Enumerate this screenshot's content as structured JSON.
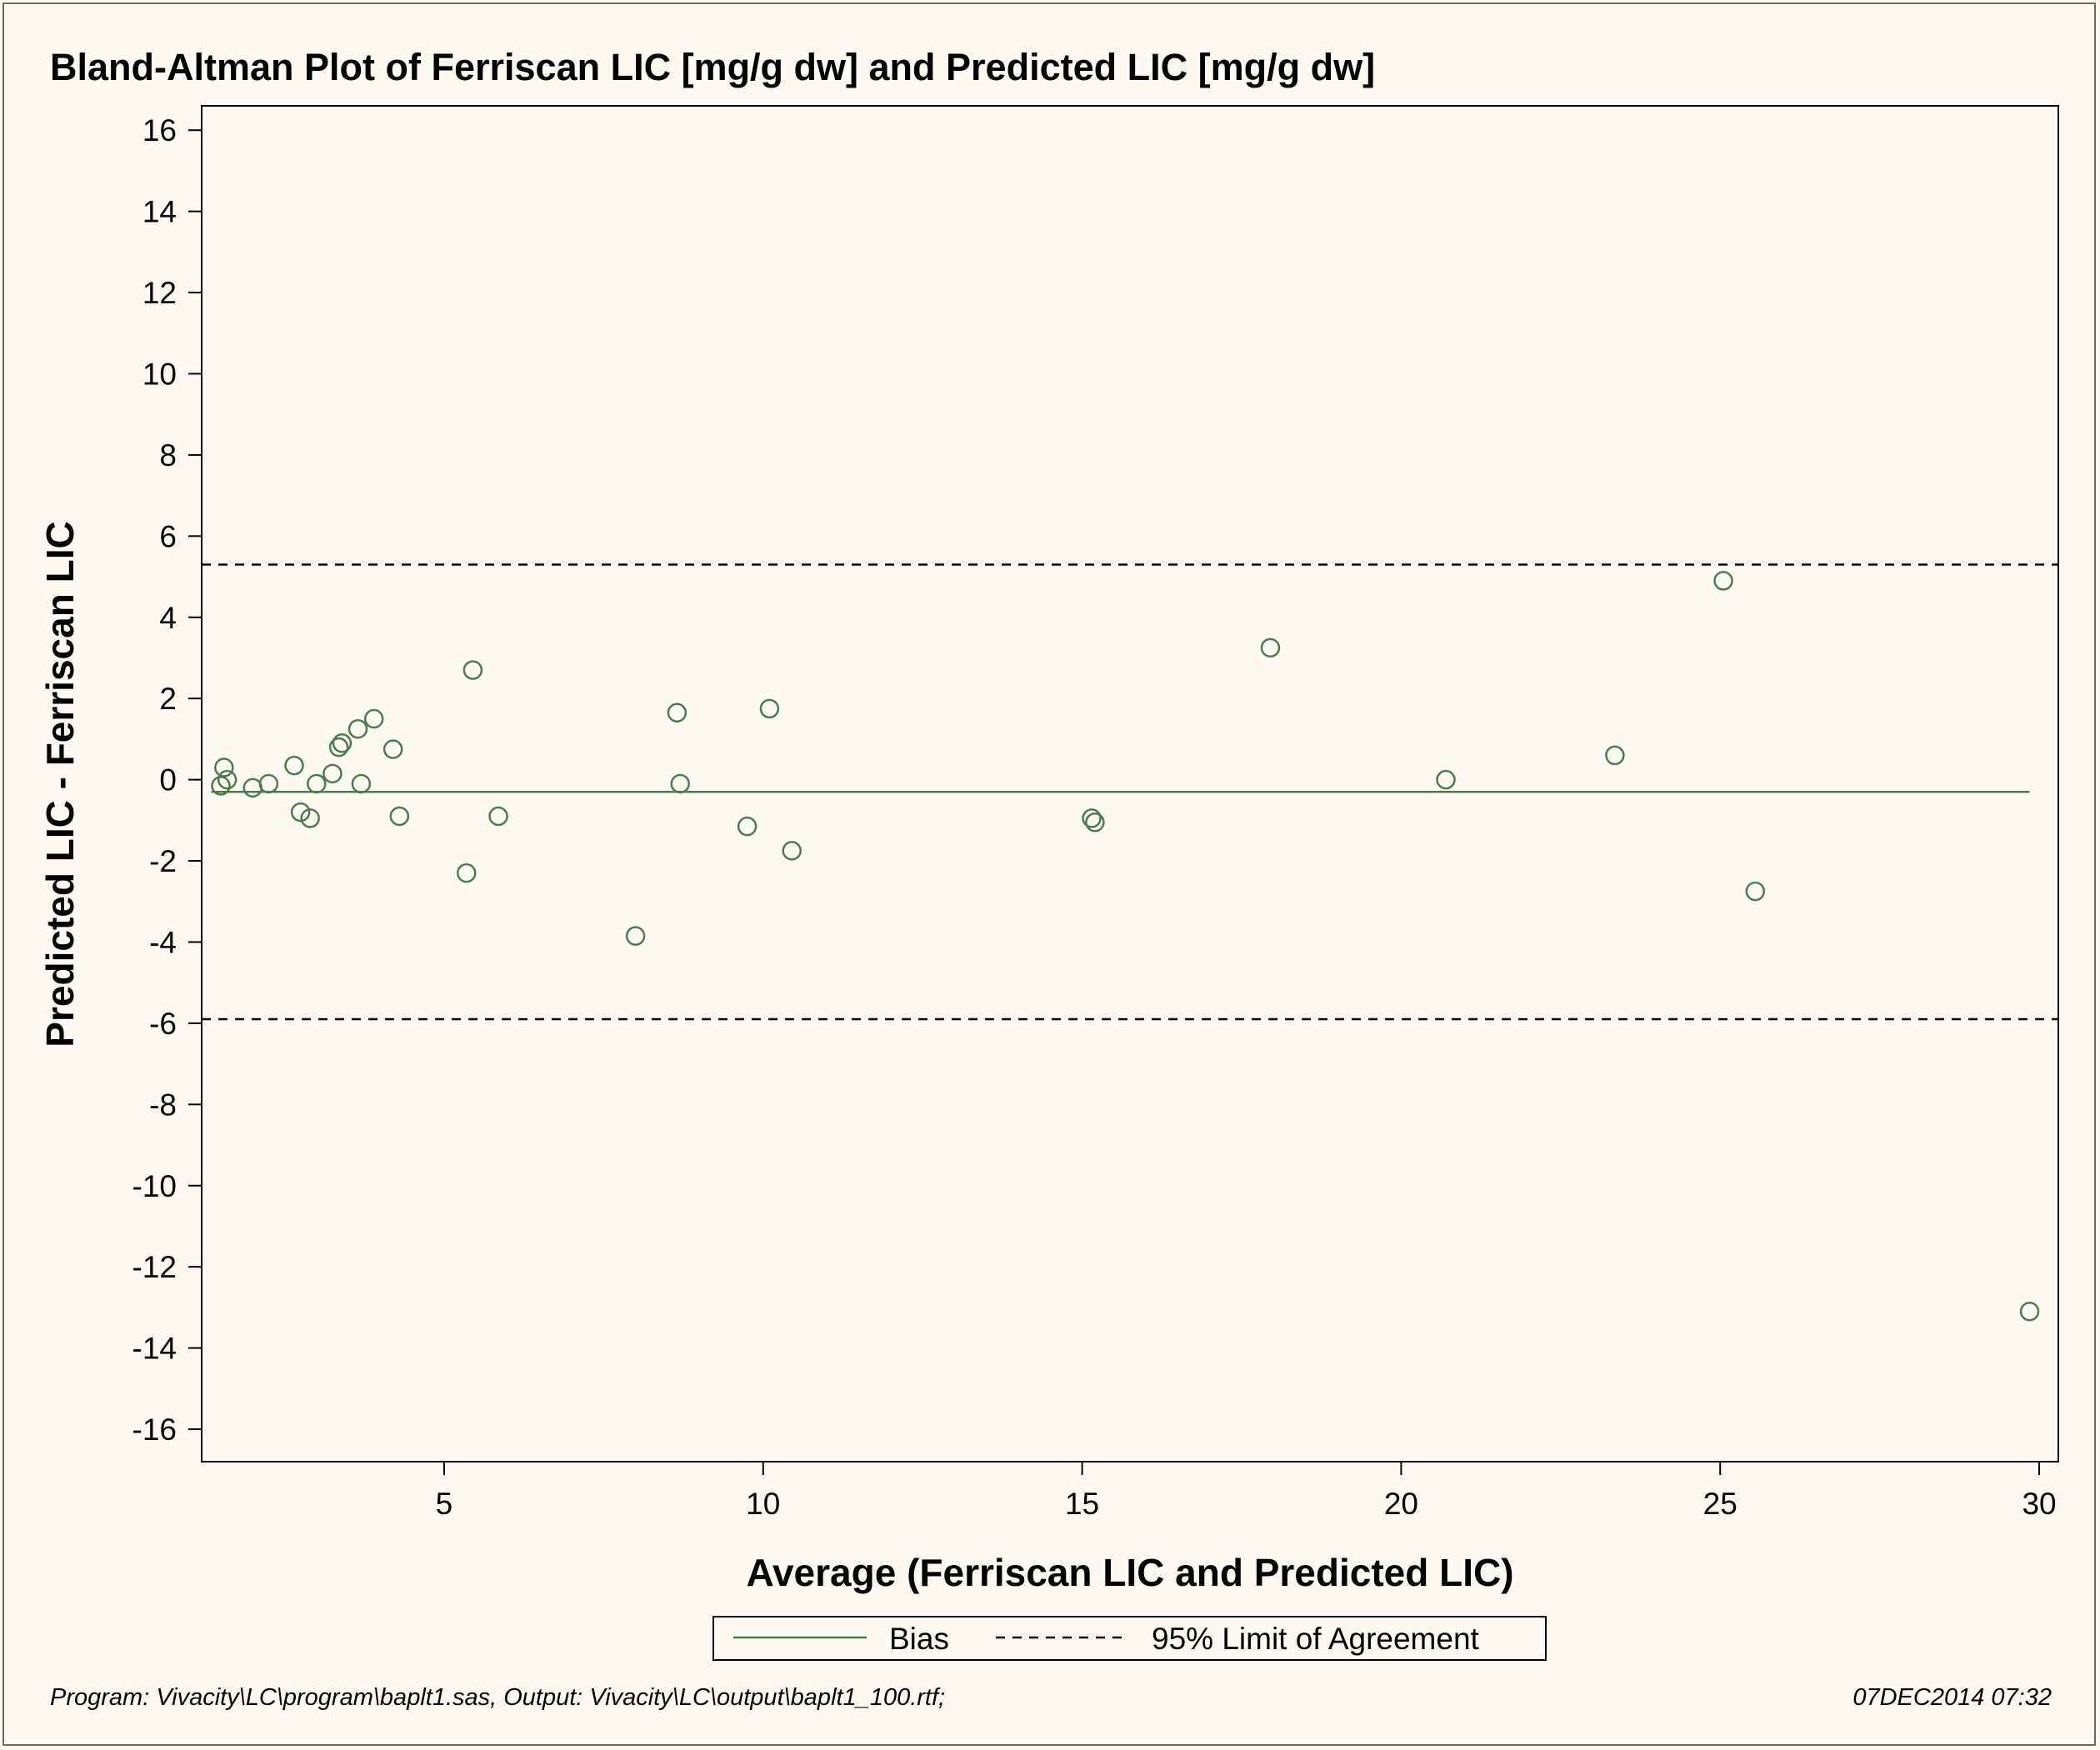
{
  "chart_data": {
    "type": "scatter",
    "title": "Bland-Altman Plot of Ferriscan LIC [mg/g dw] and Predicted LIC [mg/g dw]",
    "xlabel": "Average (Ferriscan LIC and Predicted LIC)",
    "ylabel": "Predicted LIC - Ferriscan LIC",
    "xlim": [
      1.2,
      30.3
    ],
    "ylim": [
      -16.8,
      16.6
    ],
    "xticks": [
      5,
      10,
      15,
      20,
      25,
      30
    ],
    "yticks": [
      16,
      14,
      12,
      10,
      8,
      6,
      4,
      2,
      0,
      -2,
      -4,
      -6,
      -8,
      -10,
      -12,
      -14,
      -16
    ],
    "grid": false,
    "legend_position": "bottom-center",
    "colors": {
      "points": "#4e7a4e",
      "bias": "#4e7a4e",
      "loa": "#000000",
      "background": "#fcfaf2"
    },
    "points": [
      {
        "x": 1.5,
        "y": -0.15
      },
      {
        "x": 1.55,
        "y": 0.3
      },
      {
        "x": 1.6,
        "y": 0.0
      },
      {
        "x": 2.0,
        "y": -0.2
      },
      {
        "x": 2.25,
        "y": -0.1
      },
      {
        "x": 2.65,
        "y": 0.35
      },
      {
        "x": 2.75,
        "y": -0.8
      },
      {
        "x": 2.9,
        "y": -0.95
      },
      {
        "x": 3.0,
        "y": -0.1
      },
      {
        "x": 3.25,
        "y": 0.15
      },
      {
        "x": 3.35,
        "y": 0.8
      },
      {
        "x": 3.4,
        "y": 0.9
      },
      {
        "x": 3.65,
        "y": 1.25
      },
      {
        "x": 3.7,
        "y": -0.1
      },
      {
        "x": 3.9,
        "y": 1.5
      },
      {
        "x": 4.2,
        "y": 0.75
      },
      {
        "x": 4.3,
        "y": -0.9
      },
      {
        "x": 5.35,
        "y": -2.3
      },
      {
        "x": 5.45,
        "y": 2.7
      },
      {
        "x": 5.85,
        "y": -0.9
      },
      {
        "x": 8.0,
        "y": -3.85
      },
      {
        "x": 8.65,
        "y": 1.65
      },
      {
        "x": 8.7,
        "y": -0.1
      },
      {
        "x": 9.75,
        "y": -1.15
      },
      {
        "x": 10.1,
        "y": 1.75
      },
      {
        "x": 10.45,
        "y": -1.75
      },
      {
        "x": 15.15,
        "y": -0.95
      },
      {
        "x": 15.2,
        "y": -1.05
      },
      {
        "x": 17.95,
        "y": 3.25
      },
      {
        "x": 20.7,
        "y": 0.0
      },
      {
        "x": 23.35,
        "y": 0.6
      },
      {
        "x": 25.05,
        "y": 4.9
      },
      {
        "x": 25.55,
        "y": -2.75
      },
      {
        "x": 29.85,
        "y": -13.1
      }
    ],
    "bias": {
      "name": "Bias",
      "y": -0.3
    },
    "limits_of_agreement": {
      "name": "95% Limit of Agreement",
      "upper": 5.3,
      "lower": -5.9
    }
  },
  "footer": {
    "program": "Program: Vivacity\\LC\\program\\baplt1.sas, Output: Vivacity\\LC\\output\\baplt1_100.rtf;",
    "timestamp": "07DEC2014 07:32"
  }
}
